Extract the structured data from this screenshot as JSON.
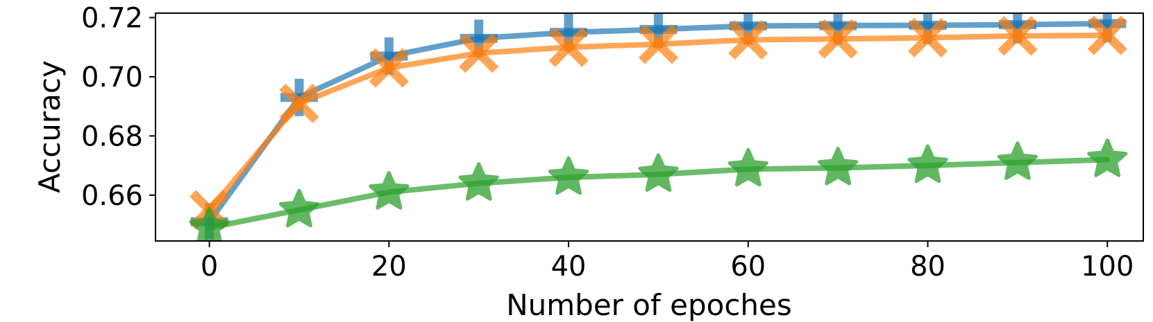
{
  "chart_data": {
    "type": "line",
    "title": "",
    "xlabel": "Number of epoches",
    "ylabel": "Accuracy",
    "xlim": [
      -6,
      104
    ],
    "ylim": [
      0.6445,
      0.7215
    ],
    "xticks": [
      0,
      20,
      40,
      60,
      80,
      100
    ],
    "xtick_labels": [
      "0",
      "20",
      "40",
      "60",
      "80",
      "100"
    ],
    "yticks": [
      0.66,
      0.68,
      0.7,
      0.72
    ],
    "ytick_labels": [
      "0.66",
      "0.68",
      "0.70",
      "0.72"
    ],
    "grid": false,
    "legend": false,
    "x": [
      0,
      10,
      20,
      30,
      40,
      50,
      60,
      70,
      80,
      90,
      100
    ],
    "series": [
      {
        "marker": "plus",
        "color": "#1f77b4",
        "values": [
          0.651,
          0.693,
          0.707,
          0.713,
          0.715,
          0.716,
          0.7172,
          0.7173,
          0.7174,
          0.7176,
          0.718
        ]
      },
      {
        "marker": "x",
        "color": "#ff7f0e",
        "values": [
          0.655,
          0.691,
          0.703,
          0.708,
          0.71,
          0.711,
          0.7125,
          0.7128,
          0.7132,
          0.7138,
          0.714
        ]
      },
      {
        "marker": "star",
        "color": "#2ca02c",
        "values": [
          0.649,
          0.655,
          0.661,
          0.664,
          0.666,
          0.667,
          0.6688,
          0.6692,
          0.67,
          0.671,
          0.672
        ]
      }
    ]
  }
}
